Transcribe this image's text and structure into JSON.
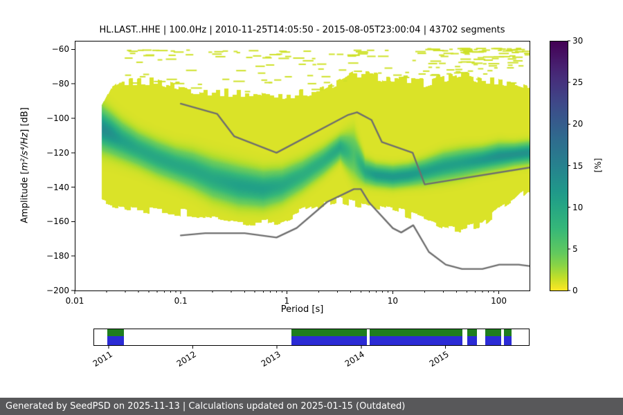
{
  "title": "HL.LAST..HHE | 100.0Hz | 2010-11-25T14:05:50 - 2015-08-05T23:00:04 | 43702 segments",
  "station": "HL.LAST..HHE",
  "sampling_rate": "100.0Hz",
  "time_range": "2010-11-25T14:05:50 - 2015-08-05T23:00:04",
  "segments_count": "43702 segments",
  "footer": {
    "text": "Generated by SeedPSD on 2025-11-13 | Calculations updated on 2025-01-15 (Outdated)",
    "bg": "#58585a"
  },
  "chart_data": {
    "type": "heatmap",
    "title": "HL.LAST..HHE | 100.0Hz | 2010-11-25T14:05:50 - 2015-08-05T23:00:04 | 43702 segments",
    "xlabel": "Period [s]",
    "ylabel": "Amplitude [m²/s⁴/Hz] [dB]",
    "ylabel_parts": {
      "pre": "Amplitude [",
      "math": "m²/s⁴/Hz",
      "post": "] [dB]"
    },
    "xscale": "log",
    "xlim": [
      0.01,
      195
    ],
    "ylim": [
      -200,
      -55
    ],
    "grid": false,
    "xticks": {
      "values": [
        0.01,
        0.1,
        1,
        10,
        100
      ],
      "labels": [
        "0.01",
        "0.1",
        "1",
        "10",
        "100"
      ]
    },
    "yticks": {
      "values": [
        -60,
        -80,
        -100,
        -120,
        -140,
        -160,
        -180,
        -200
      ],
      "labels": [
        "−60",
        "−80",
        "−100",
        "−120",
        "−140",
        "−160",
        "−180",
        "−200"
      ]
    },
    "colorbar": {
      "label": "[%]",
      "vmin": 0,
      "vmax": 30,
      "colormap": "viridis_r",
      "values": [
        0,
        5,
        10,
        15,
        20,
        25,
        30
      ],
      "labels": [
        "0",
        "5",
        "10",
        "15",
        "20",
        "25",
        "30"
      ]
    },
    "density_profile": {
      "comment_periods_s": "probability-density ridge of the PPSD histogram",
      "p": [
        0.018,
        0.022,
        0.028,
        0.04,
        0.06,
        0.09,
        0.13,
        0.2,
        0.35,
        0.6,
        0.9,
        1.4,
        2.2,
        3.2,
        4.3,
        5.5,
        7,
        10,
        14,
        20,
        30,
        45,
        70,
        100,
        140,
        190
      ],
      "top": [
        -96,
        -86,
        -81,
        -80,
        -80,
        -83,
        -85,
        -86,
        -87,
        -88,
        -88,
        -87,
        -85,
        -80,
        -76,
        -76,
        -77,
        -79,
        -80,
        -81,
        -78,
        -76,
        -80,
        -80,
        -81,
        -84
      ],
      "bottom": [
        -147,
        -149,
        -150,
        -151,
        -152,
        -153,
        -154,
        -156,
        -159,
        -160,
        -158,
        -153,
        -148,
        -146,
        -148,
        -149,
        -150,
        -152,
        -154,
        -157,
        -161,
        -163,
        -160,
        -152,
        -146,
        -139
      ],
      "mode": [
        -106,
        -109,
        -113,
        -118,
        -123,
        -127,
        -130,
        -135,
        -139,
        -141,
        -139,
        -133,
        -125,
        -117,
        -121,
        -131,
        -133,
        -134,
        -133,
        -131,
        -128,
        -126,
        -124,
        -122,
        -121,
        -120
      ],
      "peak": [
        13,
        12,
        10,
        9,
        9,
        9,
        9,
        9,
        10,
        10,
        9,
        8,
        8,
        9,
        5,
        9,
        11,
        11,
        11,
        10,
        10,
        10,
        11,
        12,
        12,
        12
      ],
      "sigma": [
        7,
        6.5,
        6,
        5.5,
        5.5,
        5.5,
        6,
        6.5,
        6.5,
        6,
        5.5,
        5,
        4.5,
        4,
        8,
        4,
        3.5,
        3.5,
        3.5,
        4,
        4.5,
        4.5,
        4,
        4,
        3.5,
        3.5
      ]
    },
    "scatter": {
      "broad_count": 170,
      "broad_logp": [
        -1.55,
        2.28
      ],
      "broad_db_span": 34,
      "cluster_count": 60,
      "cluster_logp": [
        1.25,
        2.25
      ],
      "cluster_db_span": 16
    },
    "noise_models": {
      "nhnm": [
        [
          0.1,
          -91.5
        ],
        [
          0.22,
          -97.4
        ],
        [
          0.32,
          -110.5
        ],
        [
          0.8,
          -120
        ],
        [
          3.8,
          -98
        ],
        [
          4.6,
          -96.5
        ],
        [
          6.3,
          -101
        ],
        [
          7.9,
          -113.8
        ],
        [
          15.4,
          -120
        ],
        [
          20,
          -138.4
        ],
        [
          195,
          -128.6
        ]
      ],
      "nlnm": [
        [
          0.1,
          -168
        ],
        [
          0.17,
          -166.7
        ],
        [
          0.4,
          -166.7
        ],
        [
          0.8,
          -169.2
        ],
        [
          1.24,
          -163.7
        ],
        [
          2.4,
          -148.6
        ],
        [
          4.3,
          -141.1
        ],
        [
          5,
          -141.1
        ],
        [
          6,
          -149
        ],
        [
          10,
          -163.8
        ],
        [
          12,
          -166.3
        ],
        [
          15.6,
          -162.1
        ],
        [
          21.9,
          -177.6
        ],
        [
          31.6,
          -185
        ],
        [
          45,
          -187.5
        ],
        [
          70,
          -187.5
        ],
        [
          101,
          -185
        ],
        [
          154,
          -185
        ],
        [
          195,
          -185.8
        ]
      ]
    }
  },
  "colors": {
    "noise_model": "#6e6e6e",
    "timeline_green": "#1f7d1f",
    "timeline_blue": "#2b2bd5"
  },
  "timeline": {
    "years": [
      "2011",
      "2012",
      "2013",
      "2014",
      "2015"
    ],
    "year_fracs": [
      0.035,
      0.228,
      0.421,
      0.614,
      0.807
    ],
    "segments": [
      {
        "start": 0.03,
        "end": 0.068
      },
      {
        "start": 0.452,
        "end": 0.625
      },
      {
        "start": 0.631,
        "end": 0.845
      },
      {
        "start": 0.855,
        "end": 0.877
      },
      {
        "start": 0.897,
        "end": 0.933
      },
      {
        "start": 0.94,
        "end": 0.957
      }
    ]
  }
}
